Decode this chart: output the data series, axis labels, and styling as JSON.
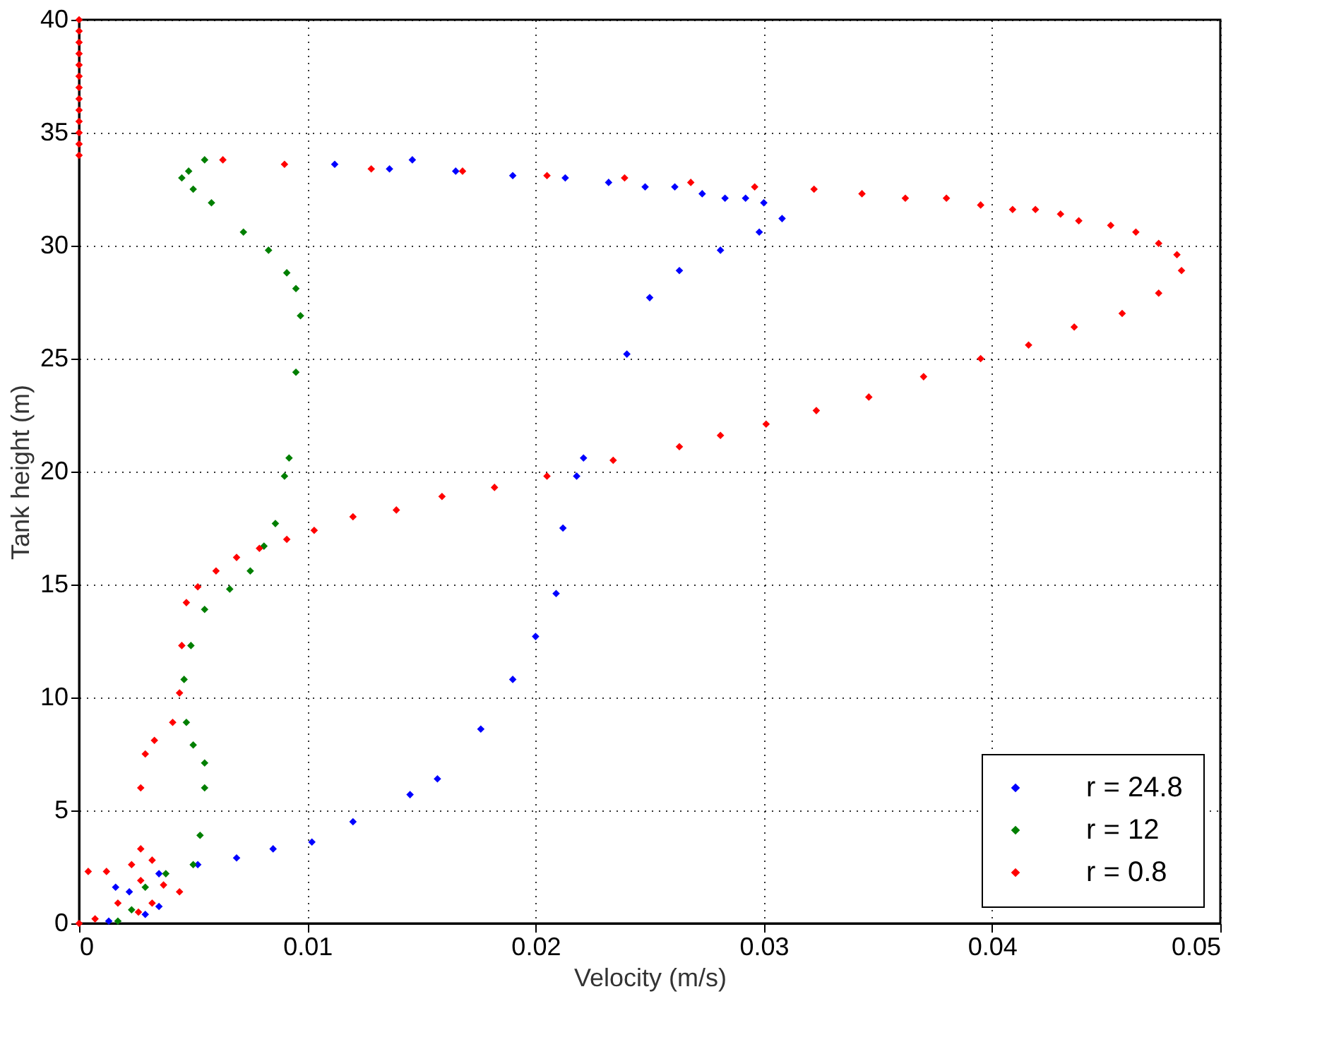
{
  "chart_data": {
    "type": "scatter",
    "xlabel": "Velocity (m/s)",
    "ylabel": "Tank height (m)",
    "xlim": [
      0,
      0.05
    ],
    "ylim": [
      0,
      40
    ],
    "xticks": [
      0,
      0.01,
      0.02,
      0.03,
      0.04,
      0.05
    ],
    "yticks": [
      0,
      5,
      10,
      15,
      20,
      25,
      30,
      35,
      40
    ],
    "grid": true,
    "legend": "bottom right",
    "marker": "diamond",
    "series": [
      {
        "name": "r = 24.8",
        "color": "#0000ff",
        "x": [
          0.0013,
          0.0029,
          0.0035,
          0.0022,
          0.0016,
          0.0035,
          0.0052,
          0.0069,
          0.0085,
          0.0102,
          0.012,
          0.0145,
          0.0157,
          0.0176,
          0.019,
          0.02,
          0.0209,
          0.0212,
          0.0218,
          0.0221,
          0.024,
          0.025,
          0.0263,
          0.0281,
          0.0298,
          0.0308,
          0.03,
          0.0292,
          0.0283,
          0.0273,
          0.0261,
          0.0248,
          0.0232,
          0.0213,
          0.019,
          0.0165,
          0.0136,
          0.0146,
          0.0112
        ],
        "values": [
          0.1,
          0.4,
          0.75,
          1.4,
          1.6,
          2.2,
          2.6,
          2.9,
          3.3,
          3.6,
          4.5,
          5.7,
          6.4,
          8.6,
          10.8,
          12.7,
          14.6,
          17.5,
          19.8,
          20.6,
          25.2,
          27.7,
          28.9,
          29.8,
          30.6,
          31.2,
          31.9,
          32.1,
          32.1,
          32.3,
          32.6,
          32.6,
          32.8,
          33.0,
          33.1,
          33.3,
          33.4,
          33.8,
          33.6
        ]
      },
      {
        "name": "r = 12",
        "color": "#007f00",
        "x": [
          0.0017,
          0.0023,
          0.0029,
          0.0038,
          0.005,
          0.0053,
          0.0055,
          0.0055,
          0.005,
          0.0047,
          0.0046,
          0.0049,
          0.0055,
          0.0066,
          0.0075,
          0.0081,
          0.0086,
          0.009,
          0.0092,
          0.0095,
          0.0097,
          0.0095,
          0.0091,
          0.0083,
          0.0072,
          0.0058,
          0.005,
          0.0045,
          0.0048,
          0.0055
        ],
        "values": [
          0.1,
          0.6,
          1.6,
          2.2,
          2.6,
          3.9,
          6.0,
          7.1,
          7.9,
          8.9,
          10.8,
          12.3,
          13.9,
          14.8,
          15.6,
          16.7,
          17.7,
          19.8,
          20.6,
          24.4,
          26.9,
          28.1,
          28.8,
          29.8,
          30.6,
          31.9,
          32.5,
          33.0,
          33.3,
          33.8
        ]
      },
      {
        "name": "r = 0.8",
        "color": "#ff0000",
        "x": [
          0,
          0.0007,
          0.0026,
          0.0017,
          0.0032,
          0.0044,
          0.0037,
          0.0027,
          0.0004,
          0.0012,
          0.0023,
          0.0032,
          0.0027,
          0.0027,
          0.0029,
          0.0033,
          0.0041,
          0.0044,
          0.0045,
          0.0047,
          0.0052,
          0.006,
          0.0069,
          0.0079,
          0.0091,
          0.0103,
          0.012,
          0.0139,
          0.0159,
          0.0182,
          0.0205,
          0.0234,
          0.0263,
          0.0281,
          0.0301,
          0.0323,
          0.0346,
          0.037,
          0.0395,
          0.0416,
          0.0436,
          0.0457,
          0.0473,
          0.0483,
          0.0481,
          0.0473,
          0.0463,
          0.0452,
          0.0438,
          0.043,
          0.0419,
          0.0409,
          0.0395,
          0.038,
          0.0362,
          0.0343,
          0.0322,
          0.0296,
          0.0268,
          0.0239,
          0.0205,
          0.0168,
          0.0128,
          0.009,
          0.0063,
          0,
          0,
          0,
          0,
          0,
          0,
          0,
          0,
          0,
          0,
          0,
          0,
          0
        ],
        "values": [
          0,
          0.2,
          0.5,
          0.9,
          0.9,
          1.4,
          1.7,
          1.9,
          2.3,
          2.3,
          2.6,
          2.8,
          3.3,
          6.0,
          7.5,
          8.1,
          8.9,
          10.2,
          12.3,
          14.2,
          14.9,
          15.6,
          16.2,
          16.6,
          17.0,
          17.4,
          18.0,
          18.3,
          18.9,
          19.3,
          19.8,
          20.5,
          21.1,
          21.6,
          22.1,
          22.7,
          23.3,
          24.2,
          25.0,
          25.6,
          26.4,
          27.0,
          27.9,
          28.9,
          29.6,
          30.1,
          30.6,
          30.9,
          31.1,
          31.4,
          31.6,
          31.6,
          31.8,
          32.1,
          32.1,
          32.3,
          32.5,
          32.6,
          32.8,
          33.0,
          33.1,
          33.3,
          33.4,
          33.6,
          33.8,
          34.0,
          34.5,
          35.0,
          35.5,
          36.0,
          36.5,
          37.0,
          37.5,
          38.0,
          38.5,
          39.0,
          39.5,
          40.0
        ]
      }
    ]
  }
}
